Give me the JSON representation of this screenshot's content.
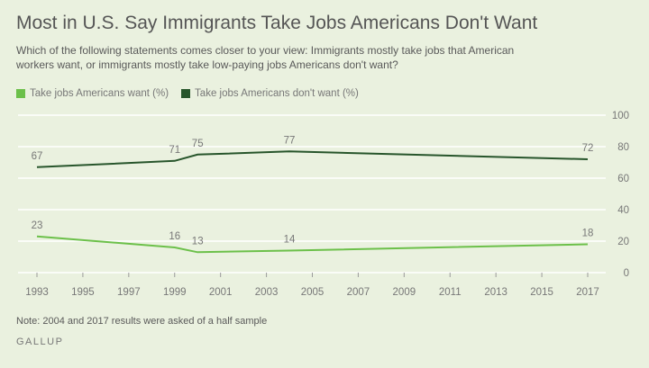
{
  "header": {
    "title": "Most in U.S. Say Immigrants Take Jobs Americans Don't Want",
    "subtitle": "Which of the following statements comes closer to your view: Immigrants mostly take jobs that American workers want, or immigrants mostly take low-paying jobs Americans don't want?"
  },
  "footer": {
    "note": "Note: 2004 and 2017 results were asked of a half sample",
    "brand": "GALLUP"
  },
  "colors": {
    "series_want": "#6cc04a",
    "series_dont_want": "#27552b",
    "grid": "#ffffff",
    "axis_text": "#777777",
    "label_text": "#777777"
  },
  "chart_data": {
    "type": "line",
    "x_ticks": [
      1993,
      1995,
      1997,
      1999,
      2001,
      2003,
      2005,
      2007,
      2009,
      2011,
      2013,
      2015,
      2017
    ],
    "xlim": [
      1993,
      2017
    ],
    "ylim": [
      0,
      100
    ],
    "y_ticks": [
      0,
      20,
      40,
      60,
      80,
      100
    ],
    "grid": true,
    "legend": "top-left",
    "series": [
      {
        "name": "Take jobs Americans want (%)",
        "x": [
          1993,
          1999,
          2000,
          2004,
          2017
        ],
        "values": [
          23,
          16,
          13,
          14,
          18
        ]
      },
      {
        "name": "Take jobs Americans don't want (%)",
        "x": [
          1993,
          1999,
          2000,
          2004,
          2017
        ],
        "values": [
          67,
          71,
          75,
          77,
          72
        ]
      }
    ]
  }
}
